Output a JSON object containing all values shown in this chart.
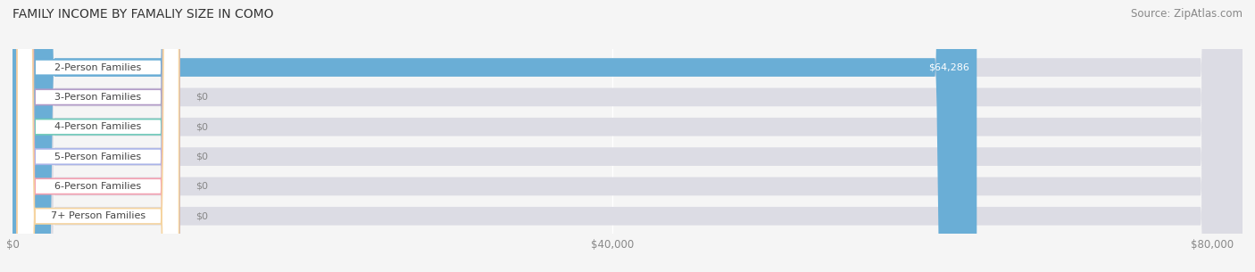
{
  "title": "FAMILY INCOME BY FAMALIY SIZE IN COMO",
  "source": "Source: ZipAtlas.com",
  "categories": [
    "2-Person Families",
    "3-Person Families",
    "4-Person Families",
    "5-Person Families",
    "6-Person Families",
    "7+ Person Families"
  ],
  "values": [
    64286,
    0,
    0,
    0,
    0,
    0
  ],
  "bar_colors": [
    "#6aaed6",
    "#b39cc8",
    "#6ec9b8",
    "#aab4e8",
    "#f4a0b0",
    "#f5d4a0"
  ],
  "value_labels": [
    "$64,286",
    "$0",
    "$0",
    "$0",
    "$0",
    "$0"
  ],
  "xlim": [
    0,
    82000
  ],
  "xticks": [
    0,
    40000,
    80000
  ],
  "xtick_labels": [
    "$0",
    "$40,000",
    "$80,000"
  ],
  "title_fontsize": 10,
  "source_fontsize": 8.5,
  "label_fontsize": 8,
  "value_fontsize": 8,
  "bar_height": 0.62,
  "fig_width": 14.06,
  "fig_height": 3.05
}
